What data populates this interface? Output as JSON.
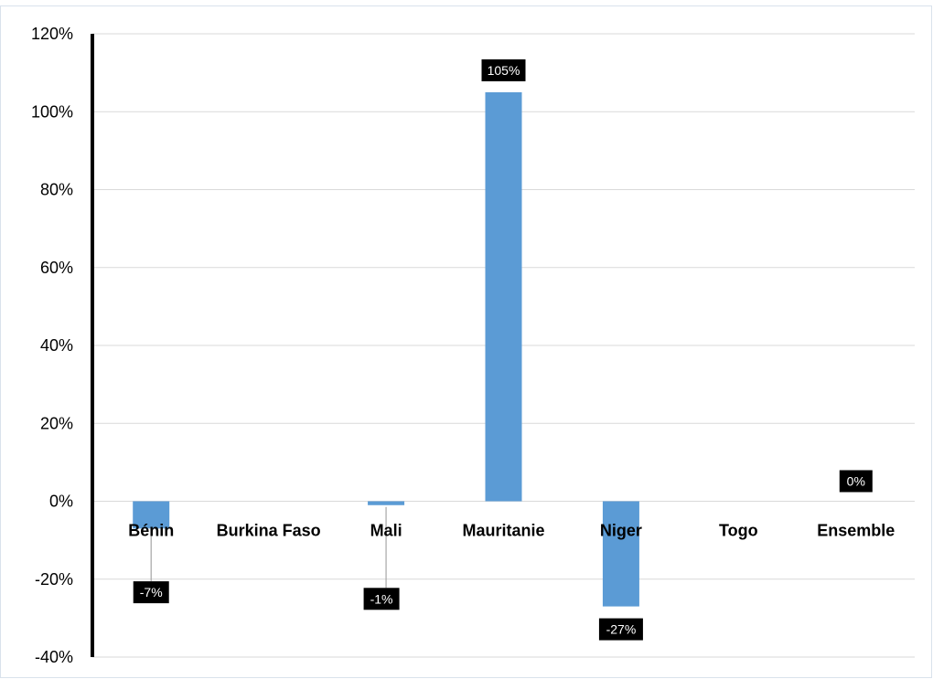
{
  "chart_data": {
    "type": "bar",
    "categories": [
      "Bénin",
      "Burkina Faso",
      "Mali",
      "Mauritanie",
      "Niger",
      "Togo",
      "Ensemble"
    ],
    "values": [
      -7,
      0,
      -1,
      105,
      -27,
      0,
      0
    ],
    "data_labels": [
      "-7%",
      null,
      "-1%",
      "105%",
      "-27%",
      null,
      "0%"
    ],
    "y_ticks": [
      -40,
      -20,
      0,
      20,
      40,
      60,
      80,
      100,
      120
    ],
    "y_tick_labels": [
      "-40%",
      "-20%",
      "0%",
      "20%",
      "40%",
      "60%",
      "80%",
      "100%",
      "120%"
    ],
    "ylim": [
      -40,
      120
    ],
    "grid": true,
    "legend": "none",
    "title": "",
    "xlabel": "",
    "ylabel": "",
    "bar_color": "#5b9bd5"
  }
}
